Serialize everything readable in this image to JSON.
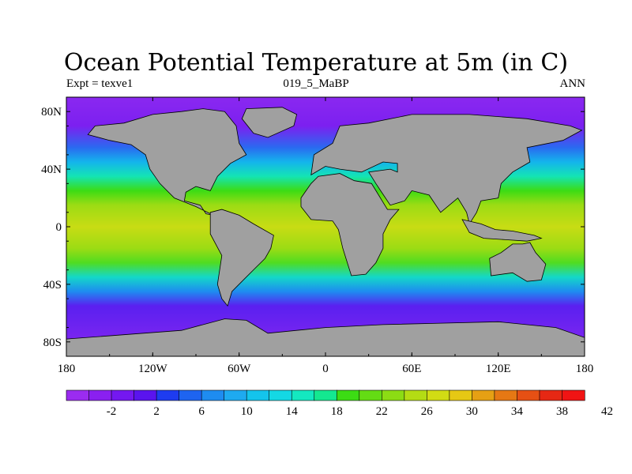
{
  "header": {
    "title": "Ocean Potential Temperature at 5m (in C)",
    "left_label": "Expt = texve1",
    "center_label": "019_5_MaBP",
    "right_label": "ANN"
  },
  "axes": {
    "lat_labels": [
      "80N",
      "40N",
      "0",
      "40S",
      "80S"
    ],
    "lat_values": [
      80,
      40,
      0,
      -40,
      -80
    ],
    "lon_labels": [
      "180",
      "120W",
      "60W",
      "0",
      "60E",
      "120E",
      "180"
    ],
    "lon_values": [
      -180,
      -120,
      -60,
      0,
      60,
      120,
      180
    ]
  },
  "colorbar": {
    "labels": [
      "-2",
      "2",
      "6",
      "10",
      "14",
      "18",
      "22",
      "26",
      "30",
      "34",
      "38",
      "42"
    ],
    "colors": [
      "#9b2cf0",
      "#8a20f0",
      "#7418f0",
      "#5a14ee",
      "#1e3cf0",
      "#1e64f0",
      "#1e8cf0",
      "#1eaaf0",
      "#14c4ec",
      "#14d8e4",
      "#14e8c0",
      "#14e890",
      "#3cdc14",
      "#64dc14",
      "#8cdc14",
      "#b4dc14",
      "#d2dc14",
      "#e6c814",
      "#e6a014",
      "#e67814",
      "#e65014",
      "#e62814",
      "#f01414"
    ]
  },
  "map": {
    "land_color": "#a0a0a0",
    "ocean_gradient": [
      {
        "lat": 90,
        "color": "#8a28f0"
      },
      {
        "lat": 70,
        "color": "#7c20f0"
      },
      {
        "lat": 55,
        "color": "#2a6af0"
      },
      {
        "lat": 45,
        "color": "#14b4ec"
      },
      {
        "lat": 35,
        "color": "#14e4b4"
      },
      {
        "lat": 25,
        "color": "#3cdc14"
      },
      {
        "lat": 15,
        "color": "#9cdc14"
      },
      {
        "lat": 0,
        "color": "#c8dc14"
      },
      {
        "lat": -15,
        "color": "#9cdc14"
      },
      {
        "lat": -25,
        "color": "#50dc20"
      },
      {
        "lat": -35,
        "color": "#14d8c8"
      },
      {
        "lat": -45,
        "color": "#1e8cf0"
      },
      {
        "lat": -55,
        "color": "#5a20f0"
      },
      {
        "lat": -90,
        "color": "#8a28f0"
      }
    ],
    "continents": [
      {
        "name": "north-america",
        "coords": [
          [
            -160,
            70
          ],
          [
            -140,
            72
          ],
          [
            -120,
            78
          ],
          [
            -100,
            80
          ],
          [
            -85,
            82
          ],
          [
            -70,
            80
          ],
          [
            -62,
            70
          ],
          [
            -60,
            58
          ],
          [
            -55,
            50
          ],
          [
            -66,
            44
          ],
          [
            -75,
            35
          ],
          [
            -80,
            25
          ],
          [
            -90,
            28
          ],
          [
            -97,
            24
          ],
          [
            -98,
            18
          ],
          [
            -87,
            15
          ],
          [
            -83,
            9
          ],
          [
            -78,
            8
          ],
          [
            -90,
            14
          ],
          [
            -105,
            20
          ],
          [
            -115,
            30
          ],
          [
            -122,
            40
          ],
          [
            -125,
            50
          ],
          [
            -135,
            57
          ],
          [
            -150,
            60
          ],
          [
            -165,
            64
          ]
        ]
      },
      {
        "name": "greenland",
        "coords": [
          [
            -55,
            82
          ],
          [
            -30,
            83
          ],
          [
            -20,
            78
          ],
          [
            -22,
            70
          ],
          [
            -40,
            62
          ],
          [
            -50,
            65
          ],
          [
            -58,
            75
          ]
        ]
      },
      {
        "name": "south-america",
        "coords": [
          [
            -80,
            10
          ],
          [
            -72,
            12
          ],
          [
            -60,
            8
          ],
          [
            -50,
            2
          ],
          [
            -36,
            -6
          ],
          [
            -38,
            -15
          ],
          [
            -42,
            -22
          ],
          [
            -48,
            -28
          ],
          [
            -58,
            -38
          ],
          [
            -65,
            -45
          ],
          [
            -68,
            -55
          ],
          [
            -72,
            -50
          ],
          [
            -75,
            -40
          ],
          [
            -72,
            -20
          ],
          [
            -80,
            -5
          ]
        ]
      },
      {
        "name": "eurasia",
        "coords": [
          [
            -10,
            36
          ],
          [
            -8,
            50
          ],
          [
            5,
            58
          ],
          [
            10,
            70
          ],
          [
            30,
            72
          ],
          [
            60,
            78
          ],
          [
            100,
            78
          ],
          [
            140,
            75
          ],
          [
            170,
            70
          ],
          [
            178,
            67
          ],
          [
            165,
            60
          ],
          [
            140,
            55
          ],
          [
            142,
            45
          ],
          [
            130,
            38
          ],
          [
            122,
            30
          ],
          [
            120,
            20
          ],
          [
            108,
            18
          ],
          [
            105,
            10
          ],
          [
            100,
            2
          ],
          [
            98,
            10
          ],
          [
            92,
            20
          ],
          [
            80,
            10
          ],
          [
            72,
            22
          ],
          [
            60,
            25
          ],
          [
            55,
            18
          ],
          [
            45,
            15
          ],
          [
            35,
            30
          ],
          [
            30,
            38
          ],
          [
            45,
            40
          ],
          [
            50,
            38
          ],
          [
            50,
            44
          ],
          [
            40,
            45
          ],
          [
            25,
            38
          ],
          [
            10,
            40
          ],
          [
            0,
            42
          ]
        ]
      },
      {
        "name": "africa",
        "coords": [
          [
            -17,
            20
          ],
          [
            -17,
            14
          ],
          [
            -10,
            5
          ],
          [
            5,
            4
          ],
          [
            9,
            -2
          ],
          [
            12,
            -15
          ],
          [
            18,
            -34
          ],
          [
            28,
            -33
          ],
          [
            35,
            -25
          ],
          [
            40,
            -15
          ],
          [
            40,
            -5
          ],
          [
            45,
            5
          ],
          [
            51,
            12
          ],
          [
            43,
            12
          ],
          [
            32,
            30
          ],
          [
            20,
            32
          ],
          [
            10,
            37
          ],
          [
            -5,
            35
          ],
          [
            -10,
            30
          ]
        ]
      },
      {
        "name": "india-seasia-islands",
        "coords": [
          [
            95,
            5
          ],
          [
            108,
            2
          ],
          [
            118,
            -2
          ],
          [
            130,
            -3
          ],
          [
            145,
            -6
          ],
          [
            150,
            -8
          ],
          [
            140,
            -10
          ],
          [
            125,
            -9
          ],
          [
            110,
            -8
          ],
          [
            100,
            -4
          ]
        ]
      },
      {
        "name": "australia",
        "coords": [
          [
            114,
            -22
          ],
          [
            122,
            -18
          ],
          [
            130,
            -12
          ],
          [
            137,
            -12
          ],
          [
            142,
            -11
          ],
          [
            146,
            -18
          ],
          [
            153,
            -26
          ],
          [
            150,
            -37
          ],
          [
            140,
            -38
          ],
          [
            130,
            -32
          ],
          [
            115,
            -34
          ]
        ]
      },
      {
        "name": "antarctica",
        "coords": [
          [
            -180,
            -78
          ],
          [
            -140,
            -75
          ],
          [
            -100,
            -72
          ],
          [
            -70,
            -64
          ],
          [
            -55,
            -65
          ],
          [
            -40,
            -74
          ],
          [
            0,
            -70
          ],
          [
            40,
            -68
          ],
          [
            80,
            -67
          ],
          [
            120,
            -66
          ],
          [
            160,
            -70
          ],
          [
            180,
            -77
          ],
          [
            180,
            -90
          ],
          [
            -180,
            -90
          ]
        ]
      }
    ]
  }
}
